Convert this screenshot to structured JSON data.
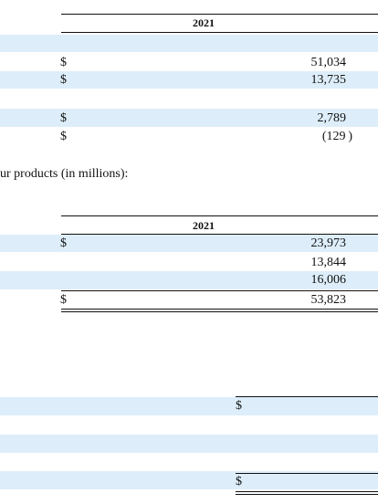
{
  "table1": {
    "year_header": "2021",
    "rows": [
      {
        "dollar": "$",
        "value": "51,034"
      },
      {
        "dollar": "$",
        "value": "13,735"
      },
      {
        "dollar": "$",
        "value": "2,789"
      },
      {
        "dollar": "$",
        "value": "(129 )"
      }
    ]
  },
  "intro_text": "ur products (in millions):",
  "table2": {
    "year_header": "2021",
    "rows": [
      {
        "dollar": "$",
        "value": "23,973"
      },
      {
        "dollar": "",
        "value": "13,844"
      },
      {
        "dollar": "",
        "value": "16,006"
      }
    ],
    "total": {
      "dollar": "$",
      "value": "53,823"
    }
  },
  "table3": {
    "dollar_top": "$",
    "dollar_bottom": "$"
  },
  "colors": {
    "band": "#ddeefa",
    "rule": "#111111"
  }
}
